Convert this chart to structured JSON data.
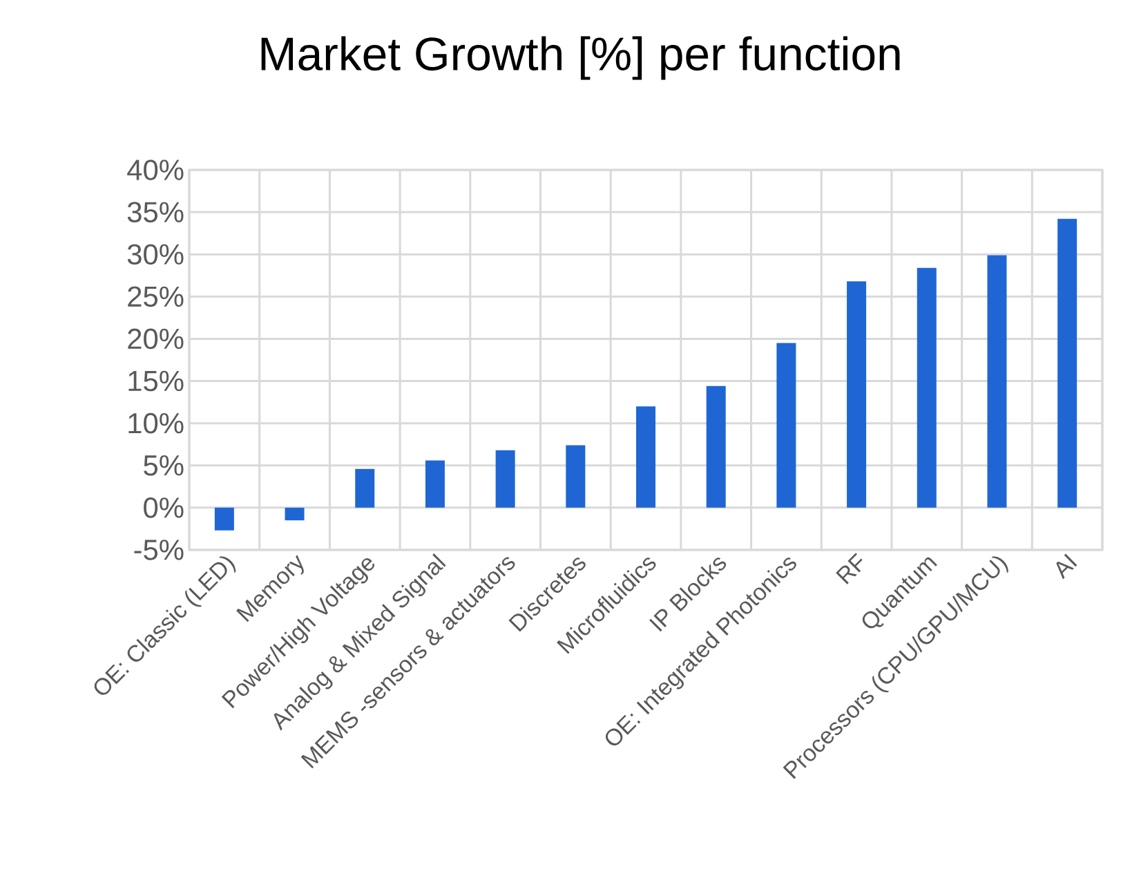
{
  "chart_data": {
    "type": "bar",
    "title": "Market Growth [%] per function",
    "categories": [
      "OE: Classic (LED)",
      "Memory",
      "Power/High Voltage",
      "Analog & Mixed Signal",
      "MEMS -sensors & actuators",
      "Discretes",
      "Microfluidics",
      "IP Blocks",
      "OE: Integrated Photonics",
      "RF",
      "Quantum",
      "Processors (CPU/GPU/MCU)",
      "AI"
    ],
    "values": [
      -2.7,
      -1.5,
      4.6,
      5.6,
      6.8,
      7.4,
      12.0,
      14.4,
      19.5,
      26.8,
      28.4,
      29.9,
      34.2
    ],
    "color": "#1f66d4",
    "ylim": [
      -5,
      40
    ],
    "yticks": [
      {
        "value": -5,
        "label": "-5%"
      },
      {
        "value": 0,
        "label": "0%"
      },
      {
        "value": 5,
        "label": "5%"
      },
      {
        "value": 10,
        "label": "10%"
      },
      {
        "value": 15,
        "label": "15%"
      },
      {
        "value": 20,
        "label": "20%"
      },
      {
        "value": 25,
        "label": "25%"
      },
      {
        "value": 30,
        "label": "30%"
      },
      {
        "value": 35,
        "label": "35%"
      },
      {
        "value": 40,
        "label": "40%"
      }
    ],
    "grid": true
  }
}
